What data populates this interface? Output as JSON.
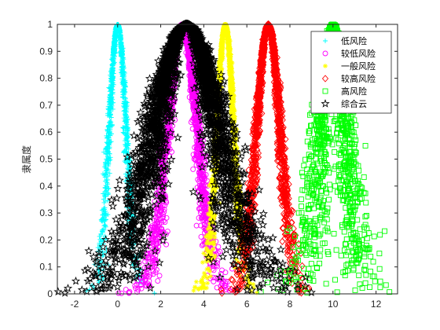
{
  "chart_data": {
    "type": "scatter",
    "title": "",
    "xlabel": "",
    "ylabel": "隶属度",
    "xlim": [
      -2.8,
      13
    ],
    "ylim": [
      0,
      1
    ],
    "xticks": [
      -2,
      0,
      2,
      4,
      6,
      8,
      10,
      12
    ],
    "yticks": [
      0,
      0.1,
      0.2,
      0.3,
      0.4,
      0.5,
      0.6,
      0.7,
      0.8,
      0.9,
      1
    ],
    "xtick_labels": [
      "-2",
      "0",
      "2",
      "4",
      "6",
      "8",
      "10",
      "12"
    ],
    "ytick_labels": [
      "0",
      "0.1",
      "0.2",
      "0.3",
      "0.4",
      "0.5",
      "0.6",
      "0.7",
      "0.8",
      "0.9",
      "1"
    ],
    "grid": false,
    "legend_position": "top-right",
    "series": [
      {
        "name": "低风险",
        "marker": "plus",
        "color": "#00ffff",
        "Ex": 0.0,
        "En": 0.4,
        "He": 0.06
      },
      {
        "name": "较低风险",
        "marker": "circle",
        "color": "#ff00ff",
        "Ex": 3.0,
        "En": 0.7,
        "He": 0.1
      },
      {
        "name": "一般风险",
        "marker": "asterisk",
        "color": "#ffff00",
        "Ex": 5.0,
        "En": 0.4,
        "He": 0.06
      },
      {
        "name": "较高风险",
        "marker": "diamond",
        "color": "#ff0000",
        "Ex": 7.0,
        "En": 0.55,
        "He": 0.08
      },
      {
        "name": "高风险",
        "marker": "square",
        "color": "#00ff00",
        "Ex": 10.0,
        "En": 0.6,
        "He": 0.25
      },
      {
        "name": "综合云",
        "marker": "pentagram",
        "color": "#000000",
        "Ex": 3.2,
        "En": 1.5,
        "He": 0.35
      }
    ]
  }
}
